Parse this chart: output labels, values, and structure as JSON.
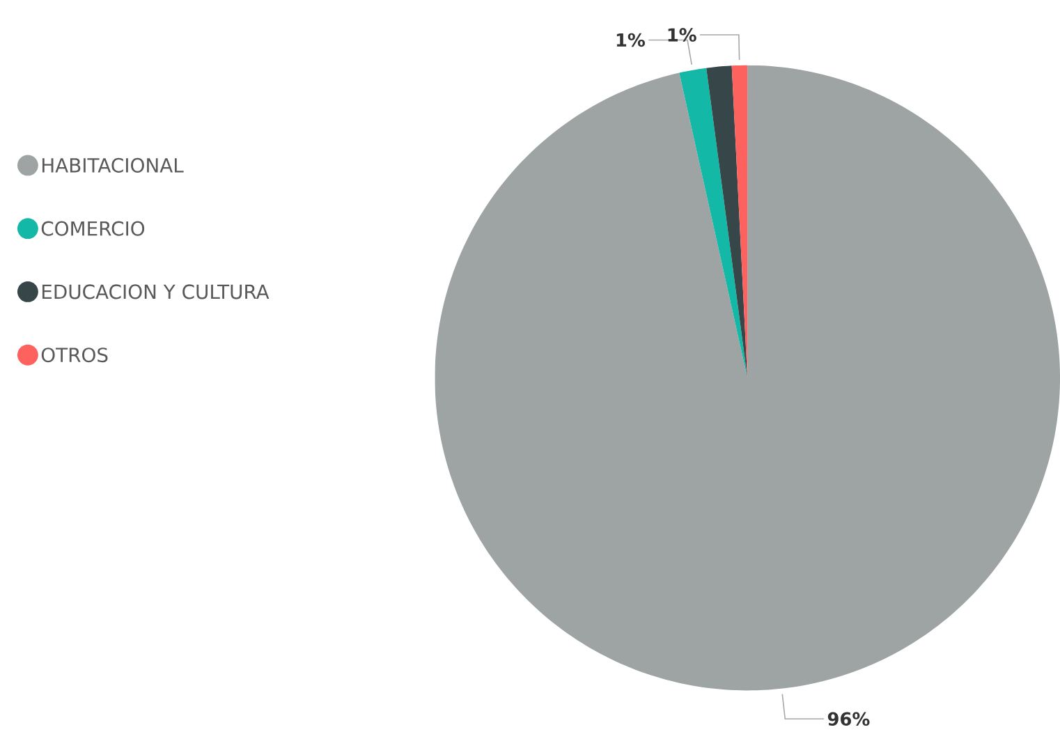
{
  "chart_data": {
    "type": "pie",
    "categories": [
      "HABITACIONAL",
      "COMERCIO",
      "EDUCACION Y CULTURA",
      "OTROS"
    ],
    "values": [
      96.5,
      1.4,
      1.3,
      0.8
    ],
    "colors": [
      "#9ea3a4",
      "#14b8a6",
      "#374649",
      "#fd625e"
    ],
    "value_labels": [
      "96%",
      "1%",
      null,
      "1%"
    ],
    "legend": "left"
  }
}
